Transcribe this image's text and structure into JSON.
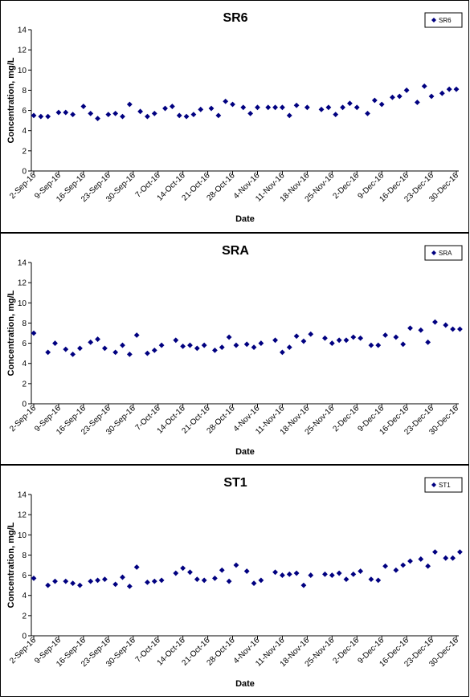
{
  "chart_data": [
    {
      "type": "scatter",
      "title": "SR6",
      "xlabel": "Date",
      "ylabel": "Concentration, mg/L",
      "ylim": [
        0,
        14
      ],
      "yticks": [
        0,
        2,
        4,
        6,
        8,
        10,
        12,
        14
      ],
      "xlim": [
        "2016-09-02",
        "2016-12-30"
      ],
      "xtick_labels": [
        "2-Sep-16",
        "9-Sep-16",
        "16-Sep-16",
        "23-Sep-16",
        "30-Sep-16",
        "7-Oct-16",
        "14-Oct-16",
        "21-Oct-16",
        "28-Oct-16",
        "4-Nov-16",
        "11-Nov-16",
        "18-Nov-16",
        "25-Nov-16",
        "2-Dec-16",
        "9-Dec-16",
        "16-Dec-16",
        "23-Dec-16",
        "30-Dec-16"
      ],
      "grid": false,
      "legend": "top-right",
      "series": [
        {
          "name": "SR6",
          "color": "#000080",
          "marker": "diamond",
          "x": [
            "2016-09-02",
            "2016-09-04",
            "2016-09-06",
            "2016-09-09",
            "2016-09-11",
            "2016-09-13",
            "2016-09-16",
            "2016-09-18",
            "2016-09-20",
            "2016-09-23",
            "2016-09-25",
            "2016-09-27",
            "2016-09-29",
            "2016-10-02",
            "2016-10-04",
            "2016-10-06",
            "2016-10-09",
            "2016-10-11",
            "2016-10-13",
            "2016-10-15",
            "2016-10-17",
            "2016-10-19",
            "2016-10-22",
            "2016-10-24",
            "2016-10-26",
            "2016-10-28",
            "2016-10-31",
            "2016-11-02",
            "2016-11-04",
            "2016-11-07",
            "2016-11-09",
            "2016-11-11",
            "2016-11-13",
            "2016-11-15",
            "2016-11-18",
            "2016-11-22",
            "2016-11-24",
            "2016-11-26",
            "2016-11-28",
            "2016-11-30",
            "2016-12-02",
            "2016-12-05",
            "2016-12-07",
            "2016-12-09",
            "2016-12-12",
            "2016-12-14",
            "2016-12-16",
            "2016-12-19",
            "2016-12-21",
            "2016-12-23",
            "2016-12-26",
            "2016-12-28",
            "2016-12-30"
          ],
          "y": [
            5.5,
            5.4,
            5.4,
            5.8,
            5.8,
            5.6,
            6.4,
            5.7,
            5.2,
            5.6,
            5.7,
            5.4,
            6.6,
            5.9,
            5.4,
            5.7,
            6.2,
            6.4,
            5.5,
            5.4,
            5.6,
            6.1,
            6.2,
            5.5,
            6.9,
            6.6,
            6.3,
            5.7,
            6.3,
            6.3,
            6.3,
            6.3,
            5.5,
            6.5,
            6.3,
            6.1,
            6.3,
            5.6,
            6.3,
            6.7,
            6.3,
            5.7,
            7.0,
            6.6,
            7.3,
            7.4,
            8.0,
            6.8,
            8.4,
            7.4,
            7.7,
            8.1,
            8.1
          ]
        }
      ]
    },
    {
      "type": "scatter",
      "title": "SRA",
      "xlabel": "Date",
      "ylabel": "Concentration, mg/L",
      "ylim": [
        0,
        14
      ],
      "yticks": [
        0,
        2,
        4,
        6,
        8,
        10,
        12,
        14
      ],
      "xlim": [
        "2016-09-02",
        "2016-12-30"
      ],
      "xtick_labels": [
        "2-Sep-16",
        "9-Sep-16",
        "16-Sep-16",
        "23-Sep-16",
        "30-Sep-16",
        "7-Oct-16",
        "14-Oct-16",
        "21-Oct-16",
        "28-Oct-16",
        "4-Nov-16",
        "11-Nov-16",
        "18-Nov-16",
        "25-Nov-16",
        "2-Dec-16",
        "9-Dec-16",
        "16-Dec-16",
        "23-Dec-16",
        "30-Dec-16"
      ],
      "grid": false,
      "legend": "top-right",
      "series": [
        {
          "name": "SRA",
          "color": "#000080",
          "marker": "diamond",
          "x": [
            "2016-09-02",
            "2016-09-06",
            "2016-09-08",
            "2016-09-11",
            "2016-09-13",
            "2016-09-15",
            "2016-09-18",
            "2016-09-20",
            "2016-09-22",
            "2016-09-25",
            "2016-09-27",
            "2016-09-29",
            "2016-10-01",
            "2016-10-04",
            "2016-10-06",
            "2016-10-08",
            "2016-10-12",
            "2016-10-14",
            "2016-10-16",
            "2016-10-18",
            "2016-10-20",
            "2016-10-23",
            "2016-10-25",
            "2016-10-27",
            "2016-10-29",
            "2016-11-01",
            "2016-11-03",
            "2016-11-05",
            "2016-11-09",
            "2016-11-11",
            "2016-11-13",
            "2016-11-15",
            "2016-11-17",
            "2016-11-19",
            "2016-11-23",
            "2016-11-25",
            "2016-11-27",
            "2016-11-29",
            "2016-12-01",
            "2016-12-03",
            "2016-12-06",
            "2016-12-08",
            "2016-12-10",
            "2016-12-13",
            "2016-12-15",
            "2016-12-17",
            "2016-12-20",
            "2016-12-22",
            "2016-12-24",
            "2016-12-27",
            "2016-12-29",
            "2016-12-31"
          ],
          "y": [
            7.0,
            5.1,
            6.0,
            5.4,
            4.9,
            5.5,
            6.1,
            6.4,
            5.5,
            5.1,
            5.8,
            4.9,
            6.8,
            5.0,
            5.3,
            5.8,
            6.3,
            5.7,
            5.8,
            5.5,
            5.8,
            5.3,
            5.6,
            6.6,
            5.8,
            5.9,
            5.6,
            6.0,
            6.3,
            5.1,
            5.6,
            6.7,
            6.2,
            6.9,
            6.5,
            6.0,
            6.3,
            6.3,
            6.6,
            6.5,
            5.8,
            5.8,
            6.8,
            6.6,
            5.9,
            7.5,
            7.3,
            6.1,
            8.1,
            7.8,
            7.4,
            7.4
          ]
        }
      ]
    },
    {
      "type": "scatter",
      "title": "ST1",
      "xlabel": "Date",
      "ylabel": "Concentration, mg/L",
      "ylim": [
        0,
        14
      ],
      "yticks": [
        0,
        2,
        4,
        6,
        8,
        10,
        12,
        14
      ],
      "xlim": [
        "2016-09-02",
        "2016-12-30"
      ],
      "xtick_labels": [
        "2-Sep-16",
        "9-Sep-16",
        "16-Sep-16",
        "23-Sep-16",
        "30-Sep-16",
        "7-Oct-16",
        "14-Oct-16",
        "21-Oct-16",
        "28-Oct-16",
        "4-Nov-16",
        "11-Nov-16",
        "18-Nov-16",
        "25-Nov-16",
        "2-Dec-16",
        "9-Dec-16",
        "16-Dec-16",
        "23-Dec-16",
        "30-Dec-16"
      ],
      "grid": false,
      "legend": "top-right",
      "series": [
        {
          "name": "ST1",
          "color": "#000080",
          "marker": "diamond",
          "x": [
            "2016-09-02",
            "2016-09-06",
            "2016-09-08",
            "2016-09-11",
            "2016-09-13",
            "2016-09-15",
            "2016-09-18",
            "2016-09-20",
            "2016-09-22",
            "2016-09-25",
            "2016-09-27",
            "2016-09-29",
            "2016-10-01",
            "2016-10-04",
            "2016-10-06",
            "2016-10-08",
            "2016-10-12",
            "2016-10-14",
            "2016-10-16",
            "2016-10-18",
            "2016-10-20",
            "2016-10-23",
            "2016-10-25",
            "2016-10-27",
            "2016-10-29",
            "2016-11-01",
            "2016-11-03",
            "2016-11-05",
            "2016-11-09",
            "2016-11-11",
            "2016-11-13",
            "2016-11-15",
            "2016-11-17",
            "2016-11-19",
            "2016-11-23",
            "2016-11-25",
            "2016-11-27",
            "2016-11-29",
            "2016-12-01",
            "2016-12-03",
            "2016-12-06",
            "2016-12-08",
            "2016-12-10",
            "2016-12-13",
            "2016-12-15",
            "2016-12-17",
            "2016-12-20",
            "2016-12-22",
            "2016-12-24",
            "2016-12-27",
            "2016-12-29",
            "2016-12-31"
          ],
          "y": [
            5.7,
            5.0,
            5.4,
            5.4,
            5.2,
            5.0,
            5.4,
            5.5,
            5.6,
            5.1,
            5.8,
            4.9,
            6.8,
            5.3,
            5.4,
            5.5,
            6.2,
            6.7,
            6.3,
            5.6,
            5.5,
            5.7,
            6.5,
            5.4,
            7.0,
            6.4,
            5.2,
            5.5,
            6.3,
            6.0,
            6.1,
            6.2,
            5.0,
            6.0,
            6.1,
            6.0,
            6.2,
            5.6,
            6.1,
            6.4,
            5.6,
            5.5,
            6.9,
            6.5,
            7.0,
            7.4,
            7.6,
            6.9,
            8.3,
            7.7,
            7.7,
            8.3
          ]
        }
      ]
    }
  ]
}
